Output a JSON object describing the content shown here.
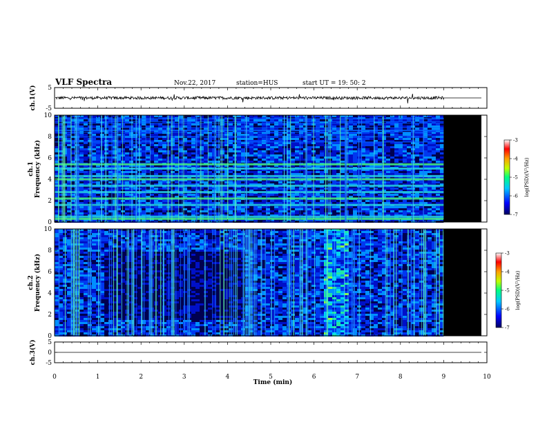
{
  "header": {
    "title": "VLF Spectra",
    "date": "Nov.22, 2017",
    "station": "station=HUS",
    "start": "start  UT =   19: 50: 2"
  },
  "chart_data": [
    {
      "type": "line",
      "panel": "ch1-waveform",
      "ylabel": "ch.1(V)",
      "ylim": [
        -5,
        5
      ],
      "yticks": [
        "5",
        "-5"
      ],
      "xlim": [
        0,
        10
      ],
      "data_end_min": 9.0,
      "baseline": 0,
      "amplitude_approx": 0.7,
      "colors": {
        "trace": "#000000"
      }
    },
    {
      "type": "heatmap",
      "panel": "ch1-spectrogram",
      "ylabel_line1": "ch.1",
      "ylabel_line2": "Frequency (kHz)",
      "ylim": [
        0,
        10
      ],
      "yticks": [
        "10",
        "8",
        "6",
        "4",
        "2",
        "0"
      ],
      "xlim": [
        0,
        10
      ],
      "data_end_min": 9.0,
      "noise_bands_khz": [
        0.3,
        0.5,
        1.6,
        2.2,
        2.8,
        3.4,
        4.0,
        4.3,
        5.0,
        5.4
      ],
      "colorbar": {
        "label": "log(PSD)(V²/Hz)",
        "ticks": [
          "-3",
          "-4",
          "-5",
          "-6",
          "-7"
        ],
        "range": [
          -7,
          -3
        ]
      }
    },
    {
      "type": "heatmap",
      "panel": "ch2-spectrogram",
      "ylabel_line1": "ch.2",
      "ylabel_line2": "Frequency (kHz)",
      "ylim": [
        0,
        10
      ],
      "yticks": [
        "10",
        "8",
        "6",
        "4",
        "2",
        "0"
      ],
      "xlim": [
        0,
        10
      ],
      "data_end_min": 9.0,
      "colorbar": {
        "label": "log(PSD)(V²/Hz)",
        "ticks": [
          "-3",
          "-4",
          "-5",
          "-6",
          "-7"
        ],
        "range": [
          -7,
          -3
        ]
      }
    },
    {
      "type": "line",
      "panel": "ch3-waveform",
      "ylabel": "ch.3(V)",
      "ylim": [
        -5,
        5
      ],
      "yticks": [
        "5",
        "0",
        "-5"
      ],
      "xlim": [
        0,
        10
      ],
      "xticks": [
        "0",
        "1",
        "2",
        "3",
        "4",
        "5",
        "6",
        "7",
        "8",
        "9",
        "10"
      ],
      "xlabel": "Time  (min)",
      "baseline": 0,
      "colors": {
        "trace": "#000000"
      }
    }
  ]
}
